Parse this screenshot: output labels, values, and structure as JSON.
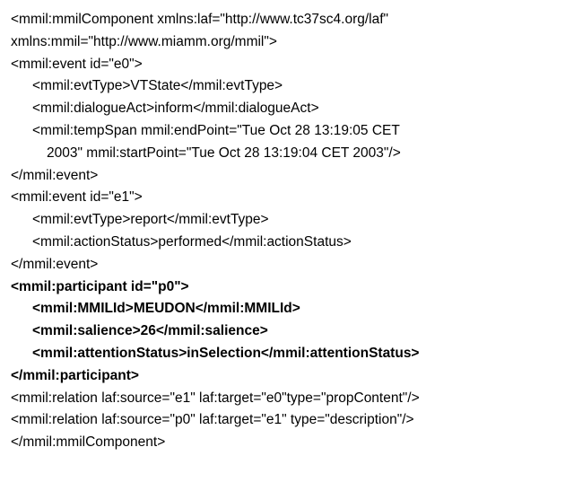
{
  "lines": [
    {
      "text": "<mmil:mmilComponent xmlns:laf=\"http://www.tc37sc4.org/laf\"",
      "indent": 0,
      "bold": false
    },
    {
      "text": "xmlns:mmil=\"http://www.miamm.org/mmil\">",
      "indent": 0,
      "bold": false
    },
    {
      "text": "<mmil:event id=\"e0\">",
      "indent": 0,
      "bold": false
    },
    {
      "text": "<mmil:evtType>VTState</mmil:evtType>",
      "indent": 1,
      "bold": false
    },
    {
      "text": "<mmil:dialogueAct>inform</mmil:dialogueAct>",
      "indent": 1,
      "bold": false
    },
    {
      "text": "<mmil:tempSpan mmil:endPoint=\"Tue Oct 28 13:19:05 CET",
      "indent": 1,
      "bold": false
    },
    {
      "text": "2003\" mmil:startPoint=\"Tue Oct 28 13:19:04 CET 2003\"/>",
      "indent": 2,
      "bold": false
    },
    {
      "text": "</mmil:event>",
      "indent": 0,
      "bold": false
    },
    {
      "text": "<mmil:event id=\"e1\">",
      "indent": 0,
      "bold": false
    },
    {
      "text": "<mmil:evtType>report</mmil:evtType>",
      "indent": 1,
      "bold": false
    },
    {
      "text": "<mmil:actionStatus>performed</mmil:actionStatus>",
      "indent": 1,
      "bold": false
    },
    {
      "text": "</mmil:event>",
      "indent": 0,
      "bold": false
    },
    {
      "text": "<mmil:participant id=\"p0\">",
      "indent": 0,
      "bold": true
    },
    {
      "text": "<mmil:MMILId>MEUDON</mmil:MMILId>",
      "indent": 1,
      "bold": true
    },
    {
      "text": "<mmil:salience>26</mmil:salience>",
      "indent": 1,
      "bold": true
    },
    {
      "text": "<mmil:attentionStatus>inSelection</mmil:attentionStatus>",
      "indent": 1,
      "bold": true
    },
    {
      "text": "</mmil:participant>",
      "indent": 0,
      "bold": true
    },
    {
      "text": "<mmil:relation laf:source=\"e1\" laf:target=\"e0\"type=\"propContent\"/>",
      "indent": 0,
      "bold": false
    },
    {
      "text": "<mmil:relation laf:source=\"p0\" laf:target=\"e1\" type=\"description\"/>",
      "indent": 0,
      "bold": false
    },
    {
      "text": "</mmil:mmilComponent>",
      "indent": 0,
      "bold": false
    }
  ]
}
